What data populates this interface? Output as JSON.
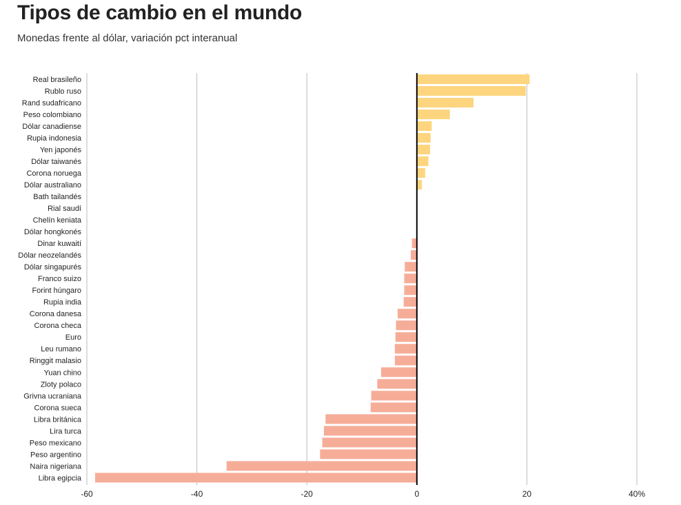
{
  "chart_data": {
    "type": "bar",
    "orientation": "horizontal",
    "title": "Tipos de cambio en el mundo",
    "subtitle": "Monedas frente al dólar, variación pct interanual",
    "xlabel": "",
    "ylabel": "",
    "xlim": [
      -60,
      40
    ],
    "xticks": [
      -60,
      -40,
      -20,
      0,
      20,
      40
    ],
    "xtick_labels": [
      "-60",
      "-40",
      "-20",
      "0",
      "20",
      "40%"
    ],
    "grid": true,
    "colors": {
      "positive": "#fdd57e",
      "negative": "#f6ad98",
      "zero_line": "#000000",
      "grid": "#bbbbbb"
    },
    "categories": [
      "Real brasileño",
      "Rublo ruso",
      "Rand sudafricano",
      "Peso colombiano",
      "Dólar canadiense",
      "Rupia indonesia",
      "Yen japonés",
      "Dólar taiwanés",
      "Corona noruega",
      "Dólar australiano",
      "Bath tailandés",
      "Rial saudí",
      "Chelín keniata",
      "Dólar hongkonés",
      "Dinar kuwaití",
      "Dólar neozelandés",
      "Dólar singapurés",
      "Franco suizo",
      "Forint húngaro",
      "Rupia india",
      "Corona danesa",
      "Corona checa",
      "Euro",
      "Leu rumano",
      "Ringgit malasio",
      "Yuan chino",
      "Zloty polaco",
      "Grivna ucraniana",
      "Corona sueca",
      "Libra británica",
      "Lira turca",
      "Peso mexicano",
      "Peso argentino",
      "Naira nigeriana",
      "Libra egipcia"
    ],
    "values": [
      20.5,
      19.8,
      10.3,
      6.0,
      2.7,
      2.5,
      2.4,
      2.1,
      1.5,
      0.9,
      0.0,
      0.0,
      0.0,
      0.0,
      -0.9,
      -1.1,
      -2.2,
      -2.3,
      -2.3,
      -2.4,
      -3.5,
      -3.8,
      -3.9,
      -4.0,
      -4.0,
      -6.5,
      -7.2,
      -8.3,
      -8.4,
      -16.6,
      -16.9,
      -17.2,
      -17.6,
      -34.6,
      -58.5
    ]
  }
}
